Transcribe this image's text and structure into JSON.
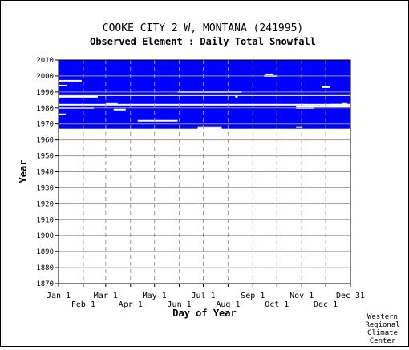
{
  "chart_data": {
    "type": "heatmap",
    "title": "COOKE CITY 2 W, MONTANA   (241995)",
    "subtitle": "Observed Element : Daily Total Snowfall",
    "xlabel": "Day of Year",
    "ylabel": "Year",
    "xlim": [
      1,
      366
    ],
    "ylim": [
      1870,
      2010
    ],
    "y_ticks": [
      1870,
      1880,
      1890,
      1900,
      1910,
      1920,
      1930,
      1940,
      1950,
      1960,
      1970,
      1980,
      1990,
      2000,
      2010
    ],
    "x_ticks_top": [
      {
        "label": "Jan 1",
        "day": 1
      },
      {
        "label": "Mar 1",
        "day": 60
      },
      {
        "label": "May 1",
        "day": 121
      },
      {
        "label": "Jul 1",
        "day": 182
      },
      {
        "label": "Sep 1",
        "day": 244
      },
      {
        "label": "Nov 1",
        "day": 305
      },
      {
        "label": "Dec 31",
        "day": 366
      }
    ],
    "x_ticks_bottom": [
      {
        "label": "Feb 1",
        "day": 32
      },
      {
        "label": "Apr 1",
        "day": 91
      },
      {
        "label": "Jun 1",
        "day": 152
      },
      {
        "label": "Aug 1",
        "day": 213
      },
      {
        "label": "Oct 1",
        "day": 274
      },
      {
        "label": "Dec 1",
        "day": 335
      }
    ],
    "grid": true,
    "fill_color": "#0000ff",
    "data_region": {
      "year_start": 1967,
      "year_end": 2010,
      "day_start": 1,
      "day_end": 366
    },
    "missing_rows": [
      {
        "year": 1997,
        "day_start": 1,
        "day_end": 30
      },
      {
        "year": 1994,
        "day_start": 1,
        "day_end": 12
      },
      {
        "year": 1988,
        "day_start": 1,
        "day_end": 366
      },
      {
        "year": 1987,
        "day_start": 1,
        "day_end": 50
      },
      {
        "year": 1982,
        "day_start": 1,
        "day_end": 366
      },
      {
        "year": 1980,
        "day_start": 1,
        "day_end": 45
      },
      {
        "year": 1976,
        "day_start": 1,
        "day_end": 10
      },
      {
        "year": 1990,
        "day_start": 150,
        "day_end": 230
      },
      {
        "year": 1983,
        "day_start": 60,
        "day_end": 75
      },
      {
        "year": 1979,
        "day_start": 70,
        "day_end": 85
      },
      {
        "year": 1972,
        "day_start": 100,
        "day_end": 150
      },
      {
        "year": 2000,
        "day_start": 258,
        "day_end": 275
      },
      {
        "year": 2001,
        "day_start": 260,
        "day_end": 270
      },
      {
        "year": 1993,
        "day_start": 330,
        "day_end": 340
      },
      {
        "year": 1981,
        "day_start": 298,
        "day_end": 366
      },
      {
        "year": 1980,
        "day_start": 298,
        "day_end": 320
      },
      {
        "year": 1982,
        "day_start": 340,
        "day_end": 366
      },
      {
        "year": 1968,
        "day_start": 175,
        "day_end": 205
      },
      {
        "year": 1967,
        "day_start": 175,
        "day_end": 205
      },
      {
        "year": 1968,
        "day_start": 298,
        "day_end": 306
      },
      {
        "year": 1983,
        "day_start": 355,
        "day_end": 362
      },
      {
        "year": 1987,
        "day_start": 222,
        "day_end": 225
      }
    ]
  },
  "credit": [
    "Western",
    "Regional",
    "Climate",
    "Center"
  ]
}
